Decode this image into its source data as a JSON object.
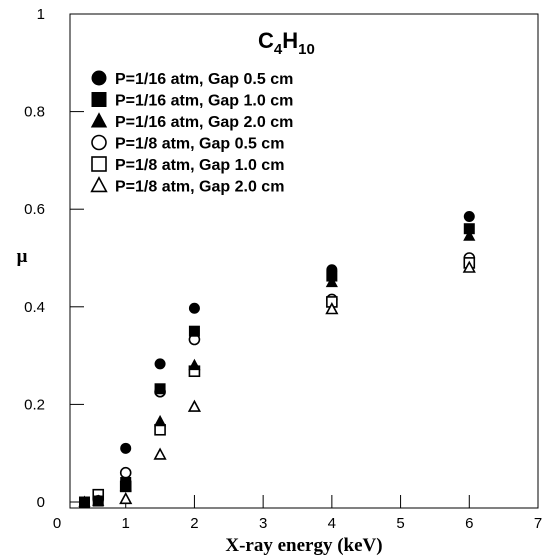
{
  "chart_data": {
    "type": "scatter",
    "title_parts": [
      {
        "text": "C",
        "sub": false
      },
      {
        "text": "4",
        "sub": true
      },
      {
        "text": "H",
        "sub": false
      },
      {
        "text": "10",
        "sub": true
      }
    ],
    "xlabel": "X-ray energy (keV)",
    "ylabel": "μ",
    "xlim": [
      0,
      7
    ],
    "ylim": [
      0,
      1
    ],
    "xticks": [
      "0",
      "1",
      "2",
      "3",
      "4",
      "5",
      "6",
      "7"
    ],
    "yticks": [
      "0",
      "0.2",
      "0.4",
      "0.6",
      "0.8",
      "1"
    ],
    "grid": false,
    "legend_position": "top-right",
    "series": [
      {
        "name": "P=1/16 atm, Gap 0.5 cm",
        "marker": "circle",
        "filled": true,
        "x": [
          0.4,
          0.6,
          1,
          1.5,
          2,
          4,
          6
        ],
        "y": [
          0.0,
          0.003,
          0.11,
          0.283,
          0.397,
          0.476,
          0.585
        ]
      },
      {
        "name": "P=1/16 atm, Gap 1.0 cm",
        "marker": "square",
        "filled": true,
        "x": [
          0.4,
          0.6,
          1,
          1.5,
          2,
          4,
          6
        ],
        "y": [
          0.0,
          0.002,
          0.04,
          0.232,
          0.35,
          0.463,
          0.56
        ]
      },
      {
        "name": "P=1/16 atm, Gap 2.0 cm",
        "marker": "triangle",
        "filled": true,
        "x": [
          0.4,
          0.6,
          1,
          1.5,
          2,
          4,
          6
        ],
        "y": [
          0.0,
          0.002,
          0.032,
          0.165,
          0.28,
          0.45,
          0.545
        ]
      },
      {
        "name": "P=1/8 atm, Gap 0.5 cm",
        "marker": "circle",
        "filled": false,
        "x": [
          0.6,
          1,
          1.5,
          2,
          4,
          6
        ],
        "y": [
          0.008,
          0.06,
          0.226,
          0.333,
          0.415,
          0.5
        ]
      },
      {
        "name": "P=1/8 atm, Gap 1.0 cm",
        "marker": "square",
        "filled": false,
        "x": [
          0.6,
          1,
          1.5,
          2,
          4,
          6
        ],
        "y": [
          0.015,
          0.032,
          0.148,
          0.268,
          0.41,
          0.49
        ]
      },
      {
        "name": "P=1/8 atm, Gap 2.0 cm",
        "marker": "triangle",
        "filled": false,
        "x": [
          1,
          1.5,
          2,
          4,
          6
        ],
        "y": [
          0.006,
          0.097,
          0.195,
          0.395,
          0.48
        ]
      }
    ]
  }
}
